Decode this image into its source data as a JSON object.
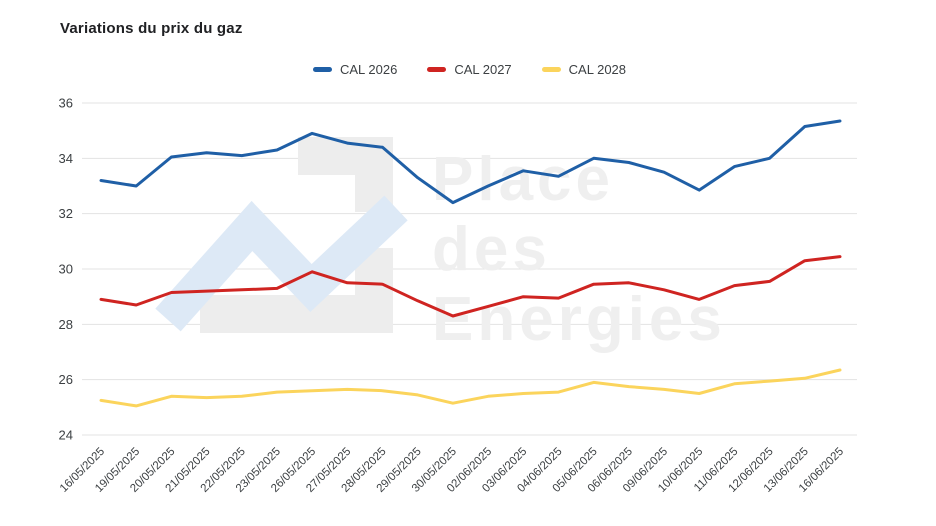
{
  "header": {
    "title": "Variations du prix du gaz"
  },
  "watermark": {
    "lines": [
      "Place",
      "des",
      "Energies"
    ]
  },
  "chart_data": {
    "type": "line",
    "title": "Variations du prix du gaz",
    "xlabel": "",
    "ylabel": "",
    "ylim": [
      24,
      36
    ],
    "yticks": [
      24,
      26,
      28,
      30,
      32,
      34,
      36
    ],
    "grid": "horizontal",
    "legend_position": "top-center",
    "x_label_rotation": -45,
    "categories": [
      "16/05/2025",
      "19/05/2025",
      "20/05/2025",
      "21/05/2025",
      "22/05/2025",
      "23/05/2025",
      "26/05/2025",
      "27/05/2025",
      "28/05/2025",
      "29/05/2025",
      "30/05/2025",
      "02/06/2025",
      "03/06/2025",
      "04/06/2025",
      "05/06/2025",
      "06/06/2025",
      "09/06/2025",
      "10/06/2025",
      "11/06/2025",
      "12/06/2025",
      "13/06/2025",
      "16/06/2025"
    ],
    "series": [
      {
        "name": "CAL 2026",
        "color": "#1f5fa6",
        "values": [
          33.2,
          33.0,
          34.05,
          34.2,
          34.1,
          34.3,
          34.9,
          34.55,
          34.4,
          33.3,
          32.4,
          33.0,
          33.55,
          33.35,
          34.0,
          33.85,
          33.5,
          32.85,
          33.7,
          34.0,
          35.15,
          35.35
        ]
      },
      {
        "name": "CAL 2027",
        "color": "#cf2421",
        "values": [
          28.9,
          28.7,
          29.15,
          29.2,
          29.25,
          29.3,
          29.9,
          29.5,
          29.45,
          28.85,
          28.3,
          28.65,
          29.0,
          28.95,
          29.45,
          29.5,
          29.25,
          28.9,
          29.4,
          29.55,
          30.3,
          30.45
        ]
      },
      {
        "name": "CAL 2028",
        "color": "#fbd45c",
        "values": [
          25.25,
          25.05,
          25.4,
          25.35,
          25.4,
          25.55,
          25.6,
          25.65,
          25.6,
          25.45,
          25.15,
          25.4,
          25.5,
          25.55,
          25.9,
          25.75,
          25.65,
          25.5,
          25.85,
          25.95,
          26.05,
          26.35
        ]
      }
    ],
    "colors": {
      "gridline": "#e3e3e3",
      "axis_text": "#3c4043",
      "watermark_gray": "#ededed",
      "watermark_blue": "#dde9f6",
      "watermark_text": "#efefef"
    }
  }
}
